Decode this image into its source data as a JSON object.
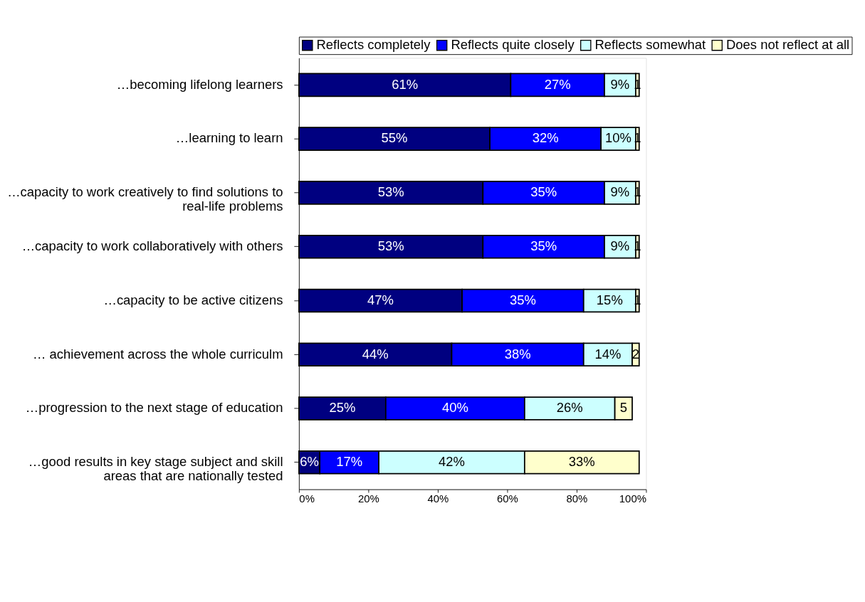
{
  "chart_data": {
    "type": "bar",
    "orientation": "horizontal",
    "stacked": true,
    "legend": "top",
    "categories": [
      "…becoming lifelong learners",
      "…learning to learn",
      "…capacity to work creatively to find solutions to\nreal-life problems",
      "…capacity to work collaboratively with others",
      "…capacity to be active citizens",
      "… achievement across the whole curriculm",
      "…progression to the next stage of education",
      "…good results in key stage subject and skill\nareas that are nationally tested"
    ],
    "series": [
      {
        "name": "Reflects completely",
        "color": "#000080",
        "values": [
          61,
          55,
          53,
          53,
          47,
          44,
          25,
          6
        ],
        "value_labels": [
          "61%",
          "55%",
          "53%",
          "53%",
          "47%",
          "44%",
          "25%",
          "6%"
        ]
      },
      {
        "name": "Reflects quite closely",
        "color": "#0000ff",
        "values": [
          27,
          32,
          35,
          35,
          35,
          38,
          40,
          17
        ],
        "value_labels": [
          "27%",
          "32%",
          "35%",
          "35%",
          "35%",
          "38%",
          "40%",
          "17%"
        ]
      },
      {
        "name": "Reflects somewhat",
        "color": "#ccffff",
        "values": [
          9,
          10,
          9,
          9,
          15,
          14,
          26,
          42
        ],
        "value_labels": [
          "9%",
          "10%",
          "9%",
          "9%",
          "15%",
          "14%",
          "26%",
          "42%"
        ]
      },
      {
        "name": "Does not reflect at all",
        "color": "#ffffcc",
        "values": [
          1,
          1,
          1,
          1,
          1,
          2,
          5,
          33
        ],
        "value_labels": [
          "1",
          "1",
          "1",
          "1",
          "1",
          "2",
          "5",
          "33%"
        ]
      }
    ],
    "xlim": [
      0,
      100
    ],
    "xticks": [
      {
        "value": 0,
        "label": "0%"
      },
      {
        "value": 20,
        "label": "20%"
      },
      {
        "value": 40,
        "label": "40%"
      },
      {
        "value": 60,
        "label": "60%"
      },
      {
        "value": 80,
        "label": "80%"
      },
      {
        "value": 100,
        "label": "100%"
      }
    ],
    "grid": false
  }
}
